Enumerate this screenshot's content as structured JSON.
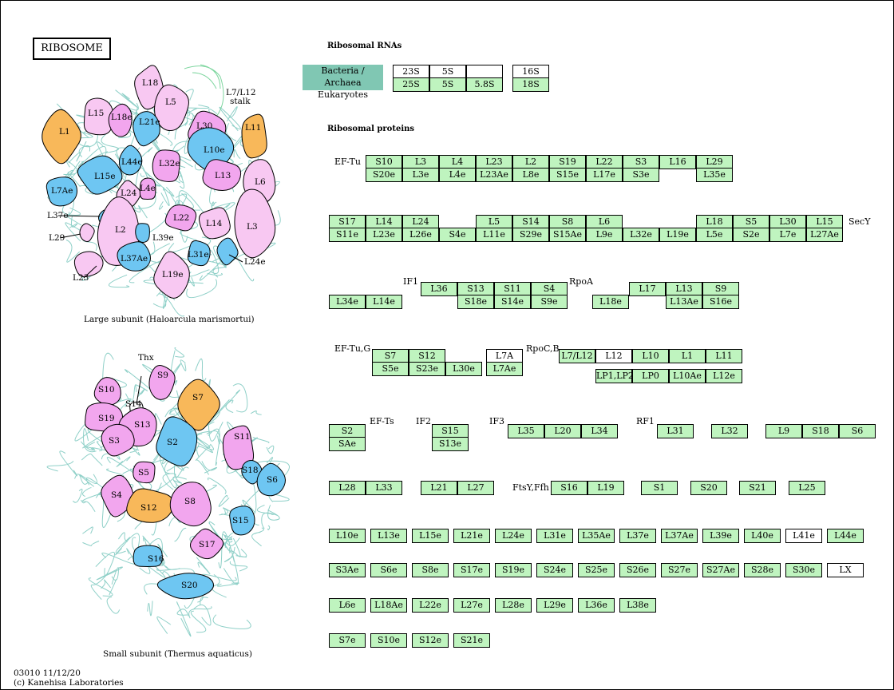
{
  "title": "RIBOSOME",
  "rna_heading": "Ribosomal RNAs",
  "protein_heading": "Ribosomal proteins",
  "legend": [
    "Bacteria / Archaea",
    "Eukaryotes"
  ],
  "large_caption": "Large subunit (Haloarcula marismortui)",
  "small_caption": "Small subunit (Thermus aquaticus)",
  "footer": [
    "03010 11/12/20",
    "(c) Kanehisa Laboratories"
  ],
  "colors": {
    "box": "#bff4bf",
    "legend": "#80c7b3",
    "pink": "#f8c8f2",
    "violet": "#f2a6ee",
    "blue": "#6ec6f2",
    "orange": "#f8b85a",
    "rna": "#8fd0c8"
  },
  "rnas": [
    {
      "label": "23S",
      "white": true
    },
    {
      "label": "5S",
      "white": true
    },
    {
      "label": "",
      "white": true
    },
    {
      "label": "16S",
      "white": true
    },
    {
      "label": "25S"
    },
    {
      "label": "5S"
    },
    {
      "label": "5.8S"
    },
    {
      "label": "18S"
    }
  ],
  "externals": [
    "EF-Tu",
    "SecY",
    "IF1",
    "RpoA",
    "EF-Tu,G",
    "RpoC,B",
    "EF-Ts",
    "IF2",
    "IF3",
    "RF1",
    "FtsY,Ffh"
  ],
  "proteins": [
    {
      "label": "S10"
    },
    {
      "label": "L3"
    },
    {
      "label": "L4"
    },
    {
      "label": "L23"
    },
    {
      "label": "L2"
    },
    {
      "label": "S19"
    },
    {
      "label": "L22"
    },
    {
      "label": "S3"
    },
    {
      "label": "L16"
    },
    {
      "label": "L29"
    },
    {
      "label": "S20e"
    },
    {
      "label": "L3e"
    },
    {
      "label": "L4e"
    },
    {
      "label": "L23Ae"
    },
    {
      "label": "L8e"
    },
    {
      "label": "S15e"
    },
    {
      "label": "L17e"
    },
    {
      "label": "S3e"
    },
    {
      "label": "L35e"
    },
    {
      "label": "S17"
    },
    {
      "label": "L14"
    },
    {
      "label": "L24"
    },
    {
      "label": "L5"
    },
    {
      "label": "S14"
    },
    {
      "label": "S8"
    },
    {
      "label": "L6"
    },
    {
      "label": "L18"
    },
    {
      "label": "S5"
    },
    {
      "label": "L30"
    },
    {
      "label": "L15"
    },
    {
      "label": "S11e"
    },
    {
      "label": "L23e"
    },
    {
      "label": "L26e"
    },
    {
      "label": "S4e"
    },
    {
      "label": "L11e"
    },
    {
      "label": "S29e"
    },
    {
      "label": "S15Ae"
    },
    {
      "label": "L9e"
    },
    {
      "label": "L32e"
    },
    {
      "label": "L19e"
    },
    {
      "label": "L5e"
    },
    {
      "label": "S2e"
    },
    {
      "label": "L7e"
    },
    {
      "label": "L27Ae"
    },
    {
      "label": "L36"
    },
    {
      "label": "S13"
    },
    {
      "label": "S11"
    },
    {
      "label": "S4"
    },
    {
      "label": "L17"
    },
    {
      "label": "L13"
    },
    {
      "label": "S9"
    },
    {
      "label": "L34e"
    },
    {
      "label": "L14e"
    },
    {
      "label": "S18e"
    },
    {
      "label": "S14e"
    },
    {
      "label": "S9e"
    },
    {
      "label": "L18e"
    },
    {
      "label": "L13Ae"
    },
    {
      "label": "S16e"
    },
    {
      "label": "S7"
    },
    {
      "label": "S12"
    },
    {
      "label": "L7A",
      "white": true
    },
    {
      "label": "L7/L12"
    },
    {
      "label": "L12",
      "white": true
    },
    {
      "label": "L10"
    },
    {
      "label": "L1"
    },
    {
      "label": "L11"
    },
    {
      "label": "S5e"
    },
    {
      "label": "S23e"
    },
    {
      "label": "L30e"
    },
    {
      "label": "L7Ae"
    },
    {
      "label": "LP1,LP2"
    },
    {
      "label": "LP0"
    },
    {
      "label": "L10Ae"
    },
    {
      "label": "L12e"
    },
    {
      "label": "S2"
    },
    {
      "label": "S15"
    },
    {
      "label": "L35"
    },
    {
      "label": "L20"
    },
    {
      "label": "L34"
    },
    {
      "label": "L31"
    },
    {
      "label": "L32"
    },
    {
      "label": "L9"
    },
    {
      "label": "S18"
    },
    {
      "label": "S6"
    },
    {
      "label": "SAe"
    },
    {
      "label": "S13e"
    },
    {
      "label": "L28"
    },
    {
      "label": "L33"
    },
    {
      "label": "L21"
    },
    {
      "label": "L27"
    },
    {
      "label": "S16"
    },
    {
      "label": "L19"
    },
    {
      "label": "S1"
    },
    {
      "label": "S20"
    },
    {
      "label": "S21"
    },
    {
      "label": "L25"
    },
    {
      "label": "L10e"
    },
    {
      "label": "L13e"
    },
    {
      "label": "L15e"
    },
    {
      "label": "L21e"
    },
    {
      "label": "L24e"
    },
    {
      "label": "L31e"
    },
    {
      "label": "L35Ae"
    },
    {
      "label": "L37e"
    },
    {
      "label": "L37Ae"
    },
    {
      "label": "L39e"
    },
    {
      "label": "L40e"
    },
    {
      "label": "L41e",
      "white": true
    },
    {
      "label": "L44e"
    },
    {
      "label": "S3Ae"
    },
    {
      "label": "S6e"
    },
    {
      "label": "S8e"
    },
    {
      "label": "S17e"
    },
    {
      "label": "S19e"
    },
    {
      "label": "S24e"
    },
    {
      "label": "S25e"
    },
    {
      "label": "S26e"
    },
    {
      "label": "S27e"
    },
    {
      "label": "S27Ae"
    },
    {
      "label": "S28e"
    },
    {
      "label": "S30e"
    },
    {
      "label": "LX",
      "white": true
    },
    {
      "label": "L6e"
    },
    {
      "label": "L18Ae"
    },
    {
      "label": "L22e"
    },
    {
      "label": "L27e"
    },
    {
      "label": "L28e"
    },
    {
      "label": "L29e"
    },
    {
      "label": "L36e"
    },
    {
      "label": "L38e"
    },
    {
      "label": "S7e"
    },
    {
      "label": "S10e"
    },
    {
      "label": "S12e"
    },
    {
      "label": "S21e"
    }
  ],
  "large_subunit": [
    {
      "label": "L18",
      "color": "pink"
    },
    {
      "label": "L5",
      "color": "pink"
    },
    {
      "label": "L7/L12",
      "color": "none"
    },
    {
      "label": "stalk",
      "color": "none"
    },
    {
      "label": "L1",
      "color": "orange"
    },
    {
      "label": "L15",
      "color": "pink"
    },
    {
      "label": "L18e",
      "color": "violet"
    },
    {
      "label": "L21e",
      "color": "blue"
    },
    {
      "label": "L30",
      "color": "violet"
    },
    {
      "label": "L11",
      "color": "orange"
    },
    {
      "label": "L10e",
      "color": "blue"
    },
    {
      "label": "L44e",
      "color": "blue"
    },
    {
      "label": "L32e",
      "color": "violet"
    },
    {
      "label": "L15e",
      "color": "blue"
    },
    {
      "label": "L13",
      "color": "violet"
    },
    {
      "label": "L6",
      "color": "pink"
    },
    {
      "label": "L7Ae",
      "color": "blue"
    },
    {
      "label": "L24",
      "color": "pink"
    },
    {
      "label": "L4e",
      "color": "violet"
    },
    {
      "label": "L37e",
      "color": "blue"
    },
    {
      "label": "L3",
      "color": "pink"
    },
    {
      "label": "L22",
      "color": "violet"
    },
    {
      "label": "L14",
      "color": "pink"
    },
    {
      "label": "L29",
      "color": "pink"
    },
    {
      "label": "L2",
      "color": "pink"
    },
    {
      "label": "L39e",
      "color": "blue"
    },
    {
      "label": "L24e",
      "color": "blue"
    },
    {
      "label": "L31e",
      "color": "blue"
    },
    {
      "label": "L37Ae",
      "color": "blue"
    },
    {
      "label": "L23",
      "color": "pink"
    },
    {
      "label": "L19e",
      "color": "pink"
    }
  ],
  "small_subunit": [
    {
      "label": "Thx",
      "color": "none"
    },
    {
      "label": "S9",
      "color": "violet"
    },
    {
      "label": "S10",
      "color": "violet"
    },
    {
      "label": "S14",
      "color": "white"
    },
    {
      "label": "S7",
      "color": "orange"
    },
    {
      "label": "S19",
      "color": "violet"
    },
    {
      "label": "S13",
      "color": "violet"
    },
    {
      "label": "S3",
      "color": "violet"
    },
    {
      "label": "S2",
      "color": "blue"
    },
    {
      "label": "S11",
      "color": "violet"
    },
    {
      "label": "S18",
      "color": "blue"
    },
    {
      "label": "S6",
      "color": "blue"
    },
    {
      "label": "S5",
      "color": "violet"
    },
    {
      "label": "S4",
      "color": "violet"
    },
    {
      "label": "S12",
      "color": "orange"
    },
    {
      "label": "S8",
      "color": "violet"
    },
    {
      "label": "S15",
      "color": "blue"
    },
    {
      "label": "S17",
      "color": "violet"
    },
    {
      "label": "S16",
      "color": "blue"
    },
    {
      "label": "S20",
      "color": "blue"
    }
  ]
}
